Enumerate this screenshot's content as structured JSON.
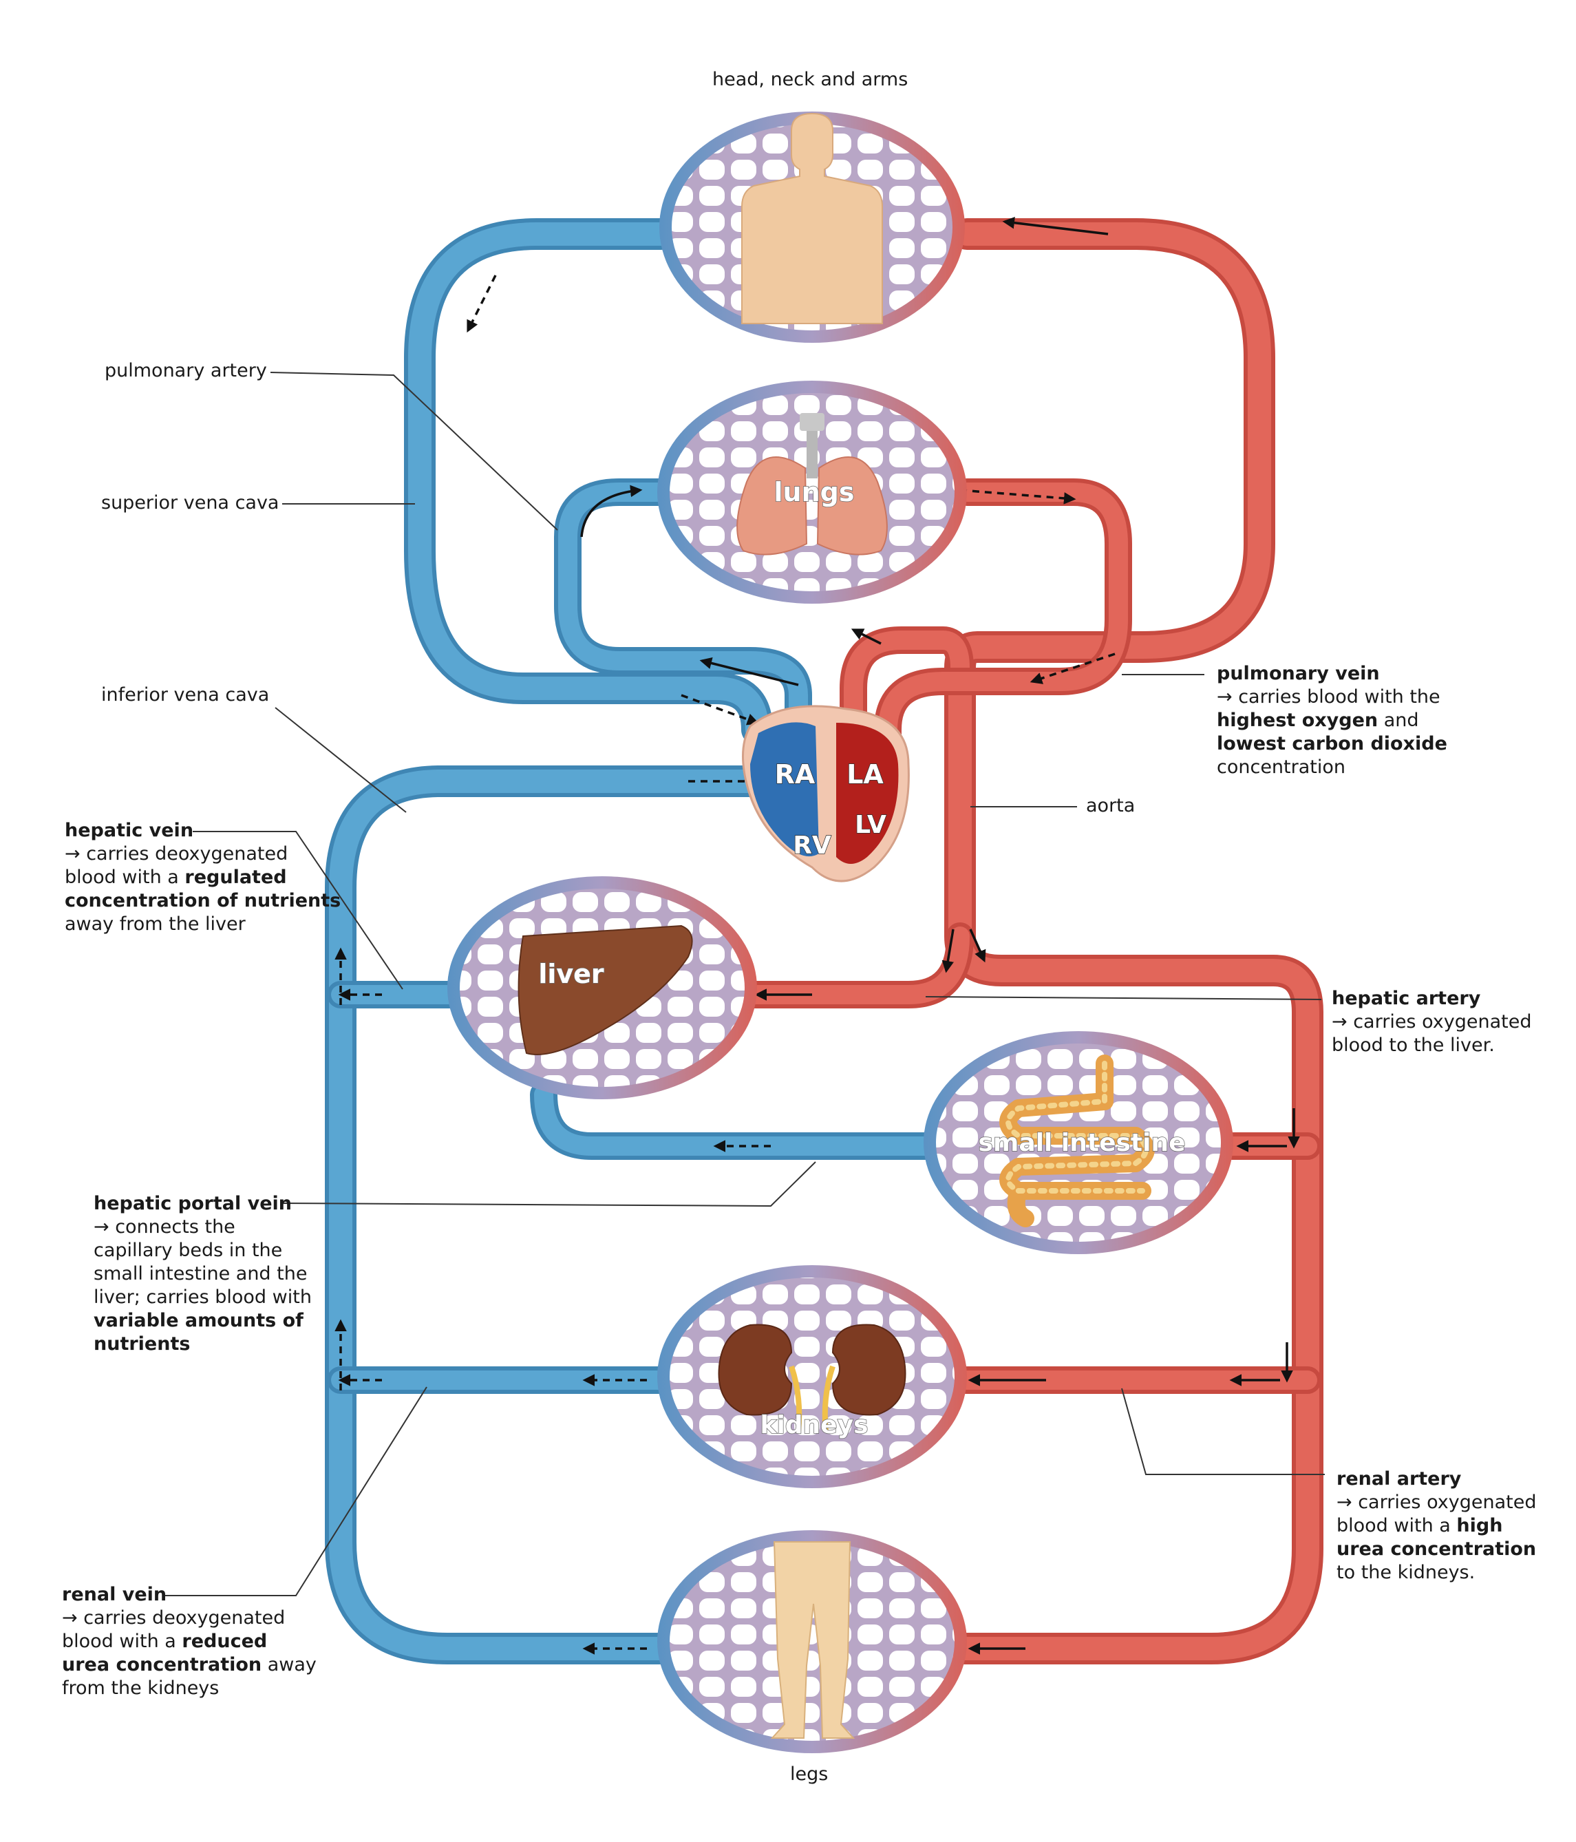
{
  "labels": {
    "head": "head, neck and arms",
    "legs": "legs",
    "pulmonary_artery": "pulmonary artery",
    "superior_vena_cava": "superior vena cava",
    "inferior_vena_cava": "inferior vena cava",
    "aorta": "aorta",
    "pulmonary_vein": {
      "title": "pulmonary vein",
      "l1": "→ carries blood with the",
      "l2a": "highest oxygen",
      "l2b": " and",
      "l3": "lowest carbon dioxide",
      "l4": "concentration"
    },
    "hepatic_vein": {
      "title": "hepatic vein",
      "l1": "→ carries deoxygenated",
      "l2a": "blood with a ",
      "l2b": "regulated",
      "l3": "concentration of nutrients",
      "l4": "away from the liver"
    },
    "hepatic_artery": {
      "title": "hepatic artery",
      "l1": "→ carries oxygenated",
      "l2": "blood to the liver."
    },
    "hepatic_portal_vein": {
      "title": "hepatic portal vein",
      "l1": "→ connects the",
      "l2": "capillary beds in the",
      "l3": "small intestine and the",
      "l4": "liver; carries blood with",
      "l5": "variable amounts of",
      "l6": "nutrients"
    },
    "renal_artery": {
      "title": "renal artery",
      "l1": "→ carries oxygenated",
      "l2a": "blood with a ",
      "l2b": "high",
      "l3": "urea concentration",
      "l4": "to the kidneys."
    },
    "renal_vein": {
      "title": "renal vein",
      "l1": "→ carries deoxygenated",
      "l2a": "blood with a ",
      "l2b": "reduced",
      "l3a": "urea concentration",
      "l3b": " away",
      "l4": "from the kidneys"
    }
  },
  "organs": {
    "lungs": "lungs",
    "liver": "liver",
    "small_intestine": "small intestine",
    "kidneys": "kidneys"
  },
  "heart": {
    "ra": "RA",
    "la": "LA",
    "rv": "RV",
    "lv": "LV"
  },
  "colors": {
    "vein": "#5aa6d2",
    "vein_edge": "#3f86b4",
    "artery": "#e2665a",
    "artery_edge": "#c74a40",
    "leader": "#333333"
  }
}
